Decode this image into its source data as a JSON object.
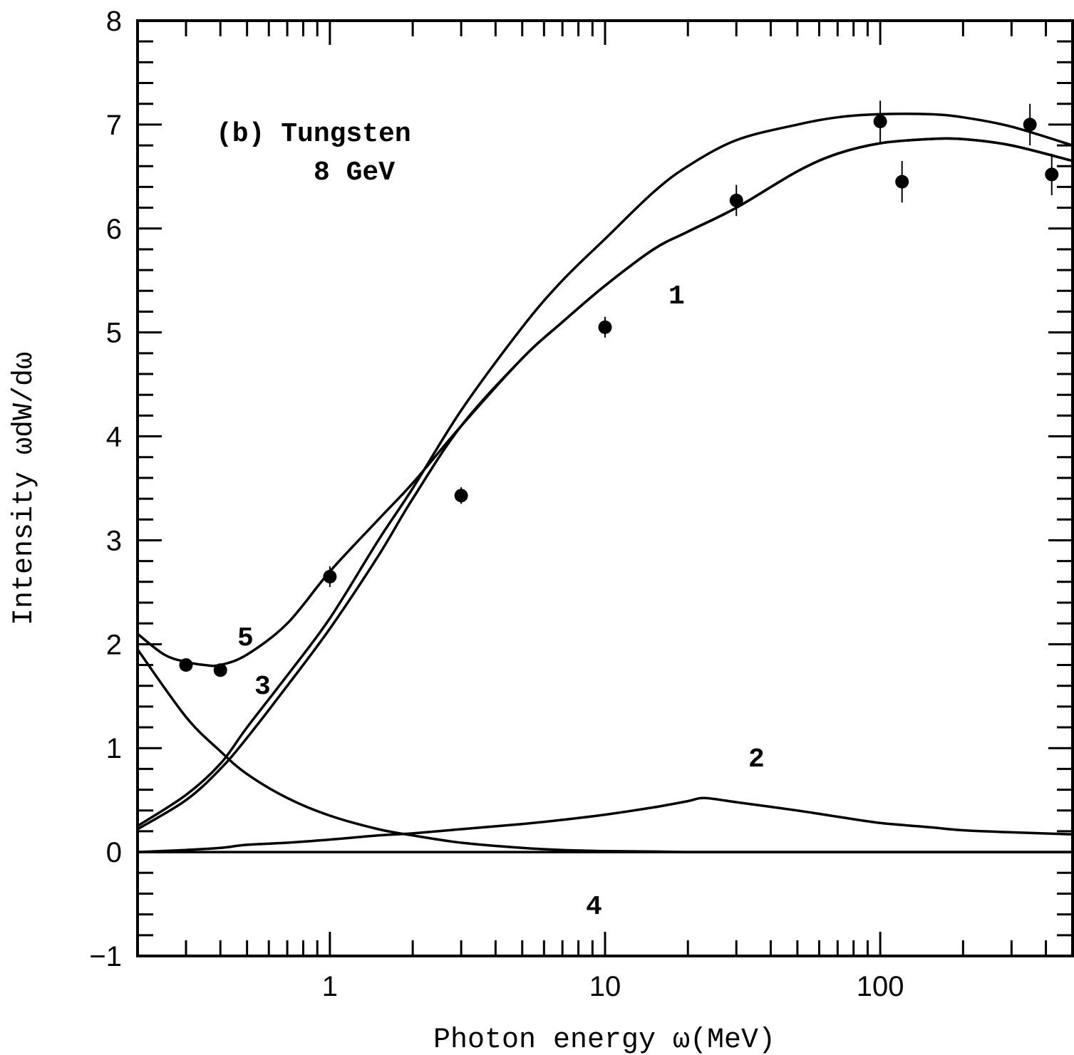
{
  "chart_data": {
    "type": "line",
    "title": "",
    "xlabel": "Photon energy ω(MeV)",
    "ylabel": "Intensity ωdW/dω",
    "xscale": "log",
    "xlim": [
      0.2,
      500
    ],
    "ylim": [
      -1,
      8
    ],
    "x_ticks": [
      1,
      10,
      100
    ],
    "x_tick_labels": [
      "1",
      "10",
      "100"
    ],
    "y_ticks": [
      -1,
      0,
      1,
      2,
      3,
      4,
      5,
      6,
      7,
      8
    ],
    "y_tick_labels": [
      "−1",
      "0",
      "1",
      "2",
      "3",
      "4",
      "5",
      "6",
      "7",
      "8"
    ],
    "grid": false,
    "legend": "none",
    "annotations": {
      "header_line1": "(b) Tungsten",
      "header_line2": "8 GeV",
      "label_1": "1",
      "label_2": "2",
      "label_3": "3",
      "label_4": "4",
      "label_5": "5"
    },
    "series": [
      {
        "curve": "upper",
        "x": [
          0.2,
          0.3,
          0.4,
          0.5,
          0.7,
          1,
          1.5,
          2,
          3,
          5,
          7,
          10,
          15,
          20,
          30,
          50,
          70,
          100,
          150,
          200,
          300,
          500
        ],
        "y": [
          0.25,
          0.55,
          0.85,
          1.2,
          1.7,
          2.25,
          3.0,
          3.5,
          4.25,
          5.05,
          5.5,
          5.9,
          6.35,
          6.6,
          6.85,
          7.0,
          7.07,
          7.1,
          7.1,
          7.07,
          6.98,
          6.8
        ]
      },
      {
        "curve": "1",
        "x": [
          0.2,
          0.3,
          0.4,
          0.5,
          0.7,
          1,
          1.5,
          2,
          3,
          5,
          7,
          10,
          15,
          20,
          30,
          50,
          70,
          100,
          150,
          200,
          300,
          500
        ],
        "y": [
          0.22,
          0.5,
          0.8,
          1.1,
          1.6,
          2.15,
          2.85,
          3.4,
          4.1,
          4.75,
          5.1,
          5.45,
          5.8,
          5.97,
          6.2,
          6.55,
          6.72,
          6.82,
          6.86,
          6.86,
          6.8,
          6.65
        ]
      },
      {
        "curve": "5",
        "x": [
          0.2,
          0.25,
          0.3,
          0.35,
          0.4,
          0.5,
          0.7,
          1,
          1.5,
          2,
          3,
          5,
          7,
          10,
          15,
          20,
          30,
          50,
          70,
          100,
          150,
          200,
          300,
          500
        ],
        "y": [
          2.1,
          1.9,
          1.83,
          1.8,
          1.8,
          1.9,
          2.2,
          2.7,
          3.2,
          3.55,
          4.1,
          4.75,
          5.1,
          5.45,
          5.8,
          5.97,
          6.2,
          6.55,
          6.72,
          6.82,
          6.86,
          6.86,
          6.8,
          6.65
        ]
      },
      {
        "curve": "3",
        "x": [
          0.2,
          0.3,
          0.4,
          0.5,
          0.7,
          1,
          1.5,
          2,
          3,
          5,
          7,
          10,
          15,
          20,
          30,
          50,
          100,
          200,
          500
        ],
        "y": [
          1.95,
          1.3,
          0.97,
          0.75,
          0.52,
          0.35,
          0.22,
          0.16,
          0.09,
          0.04,
          0.02,
          0.01,
          0.005,
          0.0,
          0.0,
          0.0,
          0.0,
          0.0,
          0.0
        ]
      },
      {
        "curve": "2",
        "x": [
          0.2,
          0.3,
          0.4,
          0.5,
          0.7,
          1,
          1.5,
          2,
          3,
          5,
          7,
          10,
          15,
          20,
          23,
          30,
          50,
          70,
          100,
          150,
          200,
          300,
          500
        ],
        "y": [
          0.0,
          0.02,
          0.04,
          0.07,
          0.09,
          0.12,
          0.16,
          0.18,
          0.22,
          0.27,
          0.31,
          0.36,
          0.43,
          0.49,
          0.52,
          0.48,
          0.4,
          0.34,
          0.28,
          0.24,
          0.21,
          0.19,
          0.17
        ]
      },
      {
        "curve": "4",
        "x": [
          0.2,
          500
        ],
        "y": [
          0.0,
          0.0
        ]
      }
    ],
    "points": [
      {
        "x": 0.3,
        "y": 1.8,
        "err": 0.06
      },
      {
        "x": 0.4,
        "y": 1.75,
        "err": 0.06
      },
      {
        "x": 1,
        "y": 2.65,
        "err": 0.1
      },
      {
        "x": 3,
        "y": 3.43,
        "err": 0.08
      },
      {
        "x": 10,
        "y": 5.05,
        "err": 0.1
      },
      {
        "x": 30,
        "y": 6.27,
        "err": 0.15
      },
      {
        "x": 100,
        "y": 7.03,
        "err": 0.2
      },
      {
        "x": 120,
        "y": 6.45,
        "err": 0.2
      },
      {
        "x": 350,
        "y": 7.0,
        "err": 0.2
      },
      {
        "x": 420,
        "y": 6.52,
        "err": 0.2
      }
    ]
  }
}
